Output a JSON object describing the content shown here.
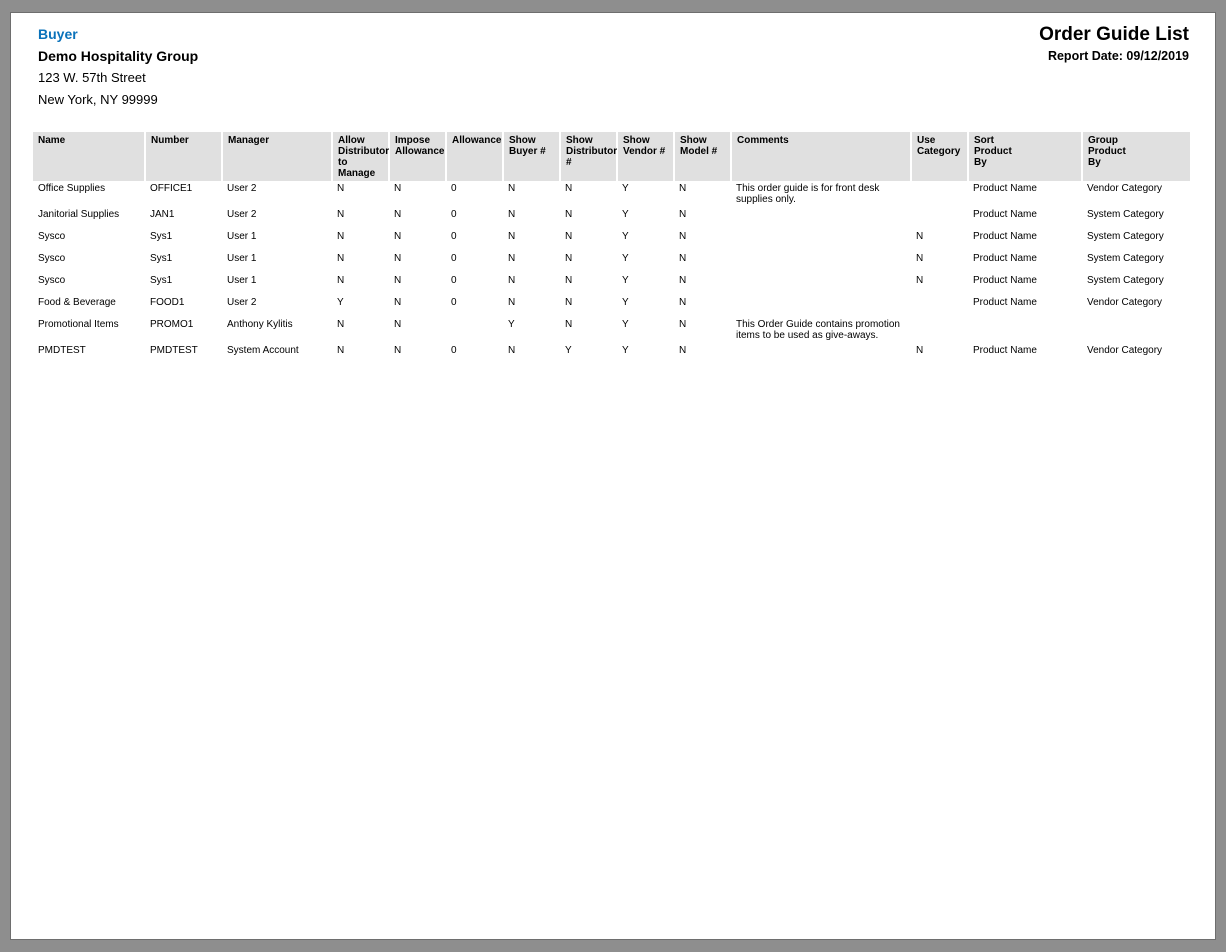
{
  "header": {
    "buyer_label": "Buyer",
    "company_name": "Demo Hospitality Group",
    "address_line1": "123 W. 57th Street",
    "address_line2": "New York, NY 99999",
    "report_title": "Order Guide List",
    "report_date": "Report Date: 09/12/2019"
  },
  "colors": {
    "accent_blue": "#0a72ba",
    "table_header_bg": "#e0e0e0",
    "frame_gray": "#8e8e8e",
    "page_white": "#ffffff"
  },
  "table": {
    "column_keys": [
      "name",
      "number",
      "manager",
      "allow-distributor-to-manage",
      "impose-allowance",
      "allowance",
      "show-buyer-number",
      "show-distributor-number",
      "show-vendor-number",
      "show-model-number",
      "comments",
      "use-category",
      "sort-product-by",
      "group-product-by"
    ],
    "columns": [
      "Name",
      "Number",
      "Manager",
      "Allow\nDistributor\nto Manage",
      "Impose\nAllowance",
      "Allowance",
      "Show\nBuyer #",
      "Show\nDistributor\n#",
      "Show\nVendor #",
      "Show\nModel #",
      "Comments",
      "Use\nCategory",
      "Sort\nProduct\nBy",
      "Group\nProduct\nBy"
    ],
    "rows": [
      [
        "Office Supplies",
        "OFFICE1",
        "User 2",
        "N",
        "N",
        "0",
        "N",
        "N",
        "Y",
        "N",
        "This order guide is for front desk supplies only.",
        "",
        "Product Name",
        "Vendor Category"
      ],
      [
        "Janitorial Supplies",
        "JAN1",
        "User 2",
        "N",
        "N",
        "0",
        "N",
        "N",
        "Y",
        "N",
        "",
        "",
        "Product Name",
        "System Category"
      ],
      [
        "Sysco",
        "Sys1",
        "User 1",
        "N",
        "N",
        "0",
        "N",
        "N",
        "Y",
        "N",
        "",
        "N",
        "Product Name",
        "System Category"
      ],
      [
        "Sysco",
        "Sys1",
        "User 1",
        "N",
        "N",
        "0",
        "N",
        "N",
        "Y",
        "N",
        "",
        "N",
        "Product Name",
        "System Category"
      ],
      [
        "Sysco",
        "Sys1",
        "User 1",
        "N",
        "N",
        "0",
        "N",
        "N",
        "Y",
        "N",
        "",
        "N",
        "Product Name",
        "System Category"
      ],
      [
        "Food & Beverage",
        "FOOD1",
        "User 2",
        "Y",
        "N",
        "0",
        "N",
        "N",
        "Y",
        "N",
        "",
        "",
        "Product Name",
        "Vendor Category"
      ],
      [
        "Promotional Items",
        "PROMO1",
        "Anthony Kylitis",
        "N",
        "N",
        "",
        "Y",
        "N",
        "Y",
        "N",
        "This Order Guide contains promotion items to be used as give-aways.",
        "",
        "",
        ""
      ],
      [
        "PMDTEST",
        "PMDTEST",
        "System Account",
        "N",
        "N",
        "0",
        "N",
        "Y",
        "Y",
        "N",
        "",
        "N",
        "Product Name",
        "Vendor Category"
      ]
    ]
  }
}
